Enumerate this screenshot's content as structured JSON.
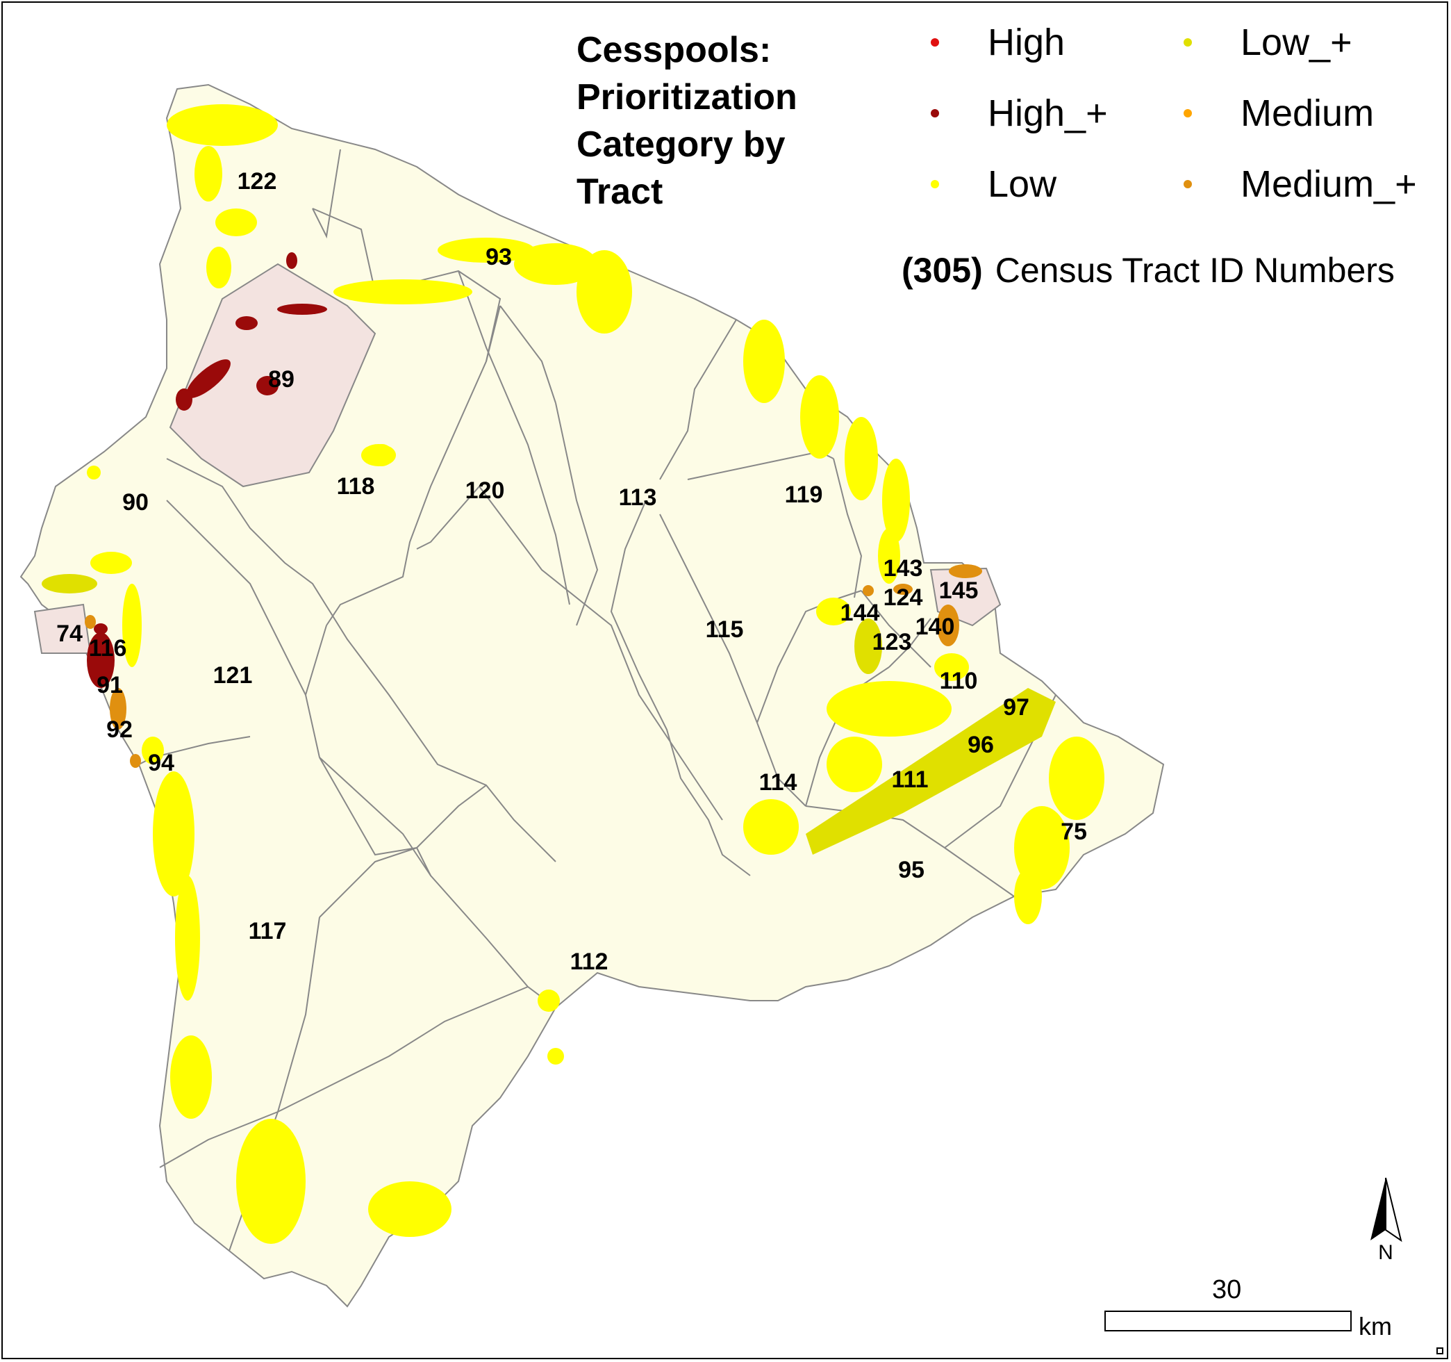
{
  "legend": {
    "title": "Cesspools: Prioritization Category by Tract",
    "categories": [
      {
        "label": "High",
        "color": "#e01010"
      },
      {
        "label": "High_+",
        "color": "#9a0a0a"
      },
      {
        "label": "Low",
        "color": "#ffff00"
      },
      {
        "label": "Low_+",
        "color": "#e0e000"
      },
      {
        "label": "Medium",
        "color": "#ffa500"
      },
      {
        "label": "Medium_+",
        "color": "#e09010"
      }
    ],
    "census_id_example": "(305)",
    "census_id_label": "Census Tract ID Numbers"
  },
  "tracts": [
    "122",
    "93",
    "89",
    "118",
    "120",
    "113",
    "119",
    "90",
    "143",
    "145",
    "144",
    "124",
    "115",
    "140",
    "123",
    "74",
    "116",
    "121",
    "91",
    "110",
    "97",
    "92",
    "96",
    "94",
    "111",
    "114",
    "75",
    "95",
    "117",
    "112"
  ],
  "tract_colors": {
    "base_fill": "#fdfce6",
    "high_fill": "#f3e3e0",
    "medium_fill": "#fbeedc",
    "boundary": "#888888"
  },
  "scale_bar": {
    "value": "30",
    "unit": "km"
  },
  "north_arrow": {
    "label": "N"
  }
}
